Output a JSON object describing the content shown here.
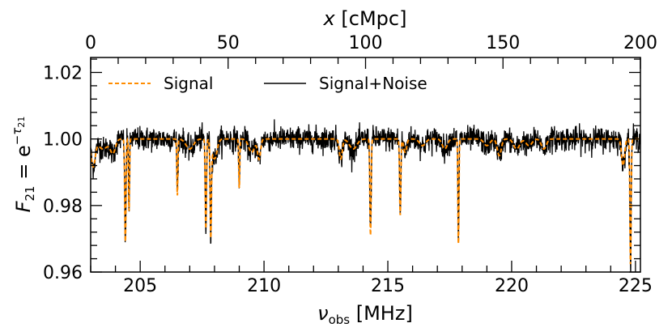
{
  "chart_data": {
    "type": "line",
    "title": "",
    "xlabel_bottom": "ν",
    "xlabel_bottom_sub": "obs",
    "xlabel_bottom_unit": " [MHz]",
    "xlabel_top": "x",
    "xlabel_top_unit": " [cMpc]",
    "ylabel_main": "F",
    "ylabel_sub": "21",
    "ylabel_eq": " = e",
    "ylabel_sup": "−τ",
    "ylabel_sup_sub": "21",
    "xlim_bottom": [
      203.0,
      225.2
    ],
    "xlim_top": [
      0,
      200
    ],
    "ylim": [
      0.96,
      1.0245
    ],
    "x_ticks_bottom": [
      205,
      210,
      215,
      220,
      225
    ],
    "x_tick_labels_bottom": [
      "205",
      "210",
      "215",
      "220",
      "225"
    ],
    "x_ticks_top": [
      0,
      50,
      100,
      150,
      200
    ],
    "x_tick_labels_top": [
      "0",
      "50",
      "100",
      "150",
      "200"
    ],
    "y_ticks": [
      0.96,
      0.98,
      1.0,
      1.02
    ],
    "y_tick_labels": [
      "0.96",
      "0.98",
      "1.00",
      "1.02"
    ],
    "grid": false,
    "legend_position": "top-left",
    "series": [
      {
        "name": "Signal",
        "color": "#ff8c00",
        "style": "dashed",
        "baseline": 1.0,
        "absorption_features": [
          {
            "x": 203.1,
            "depth": 0.008,
            "width": 0.08
          },
          {
            "x": 203.5,
            "depth": 0.003,
            "width": 0.2
          },
          {
            "x": 203.9,
            "depth": 0.004,
            "width": 0.1
          },
          {
            "x": 204.4,
            "depth": 0.031,
            "width": 0.025
          },
          {
            "x": 204.55,
            "depth": 0.022,
            "width": 0.02
          },
          {
            "x": 206.5,
            "depth": 0.017,
            "width": 0.02
          },
          {
            "x": 207.0,
            "depth": 0.003,
            "width": 0.15
          },
          {
            "x": 207.65,
            "depth": 0.027,
            "width": 0.025
          },
          {
            "x": 207.85,
            "depth": 0.028,
            "width": 0.025
          },
          {
            "x": 208.0,
            "depth": 0.006,
            "width": 0.1
          },
          {
            "x": 209.0,
            "depth": 0.015,
            "width": 0.02
          },
          {
            "x": 209.5,
            "depth": 0.004,
            "width": 0.12
          },
          {
            "x": 209.8,
            "depth": 0.006,
            "width": 0.06
          },
          {
            "x": 213.1,
            "depth": 0.006,
            "width": 0.06
          },
          {
            "x": 213.6,
            "depth": 0.003,
            "width": 0.15
          },
          {
            "x": 214.3,
            "depth": 0.029,
            "width": 0.025
          },
          {
            "x": 215.5,
            "depth": 0.023,
            "width": 0.025
          },
          {
            "x": 215.7,
            "depth": 0.004,
            "width": 0.06
          },
          {
            "x": 216.4,
            "depth": 0.002,
            "width": 0.12
          },
          {
            "x": 217.3,
            "depth": 0.003,
            "width": 0.1
          },
          {
            "x": 217.85,
            "depth": 0.032,
            "width": 0.02
          },
          {
            "x": 219.0,
            "depth": 0.002,
            "width": 0.12
          },
          {
            "x": 219.5,
            "depth": 0.005,
            "width": 0.08
          },
          {
            "x": 220.2,
            "depth": 0.003,
            "width": 0.12
          },
          {
            "x": 220.7,
            "depth": 0.002,
            "width": 0.12
          },
          {
            "x": 221.3,
            "depth": 0.003,
            "width": 0.1
          },
          {
            "x": 224.5,
            "depth": 0.008,
            "width": 0.06
          },
          {
            "x": 224.8,
            "depth": 0.038,
            "width": 0.025
          }
        ]
      },
      {
        "name": "Signal+Noise",
        "color": "#000000",
        "style": "solid",
        "noise_amplitude": 0.0018
      }
    ]
  }
}
